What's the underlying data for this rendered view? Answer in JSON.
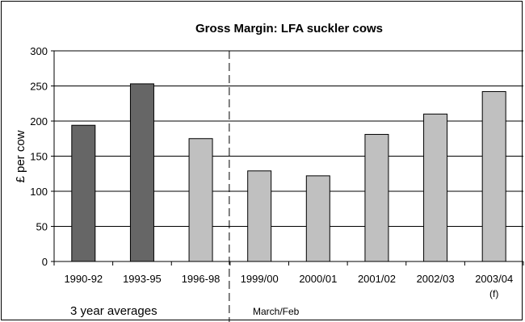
{
  "chart_data": {
    "type": "bar",
    "title": "Gross Margin: LFA suckler cows",
    "ylabel": "£ per cow",
    "xlabel": "",
    "ylim": [
      0,
      300
    ],
    "yticks": [
      0,
      50,
      100,
      150,
      200,
      250,
      300
    ],
    "grid": true,
    "categories": [
      "1990-92",
      "1993-95",
      "1996-98",
      "1999/00",
      "2000/01",
      "2001/02",
      "2002/03",
      "2003/04"
    ],
    "category_sublabels": [
      "",
      "",
      "",
      "",
      "",
      "",
      "",
      "(f)"
    ],
    "values": [
      194,
      253,
      175,
      129,
      122,
      181,
      210,
      242
    ],
    "bar_groups": [
      "dark",
      "dark",
      "light",
      "light",
      "light",
      "light",
      "light",
      "light"
    ],
    "colors": {
      "dark": "#666666",
      "light": "#c0c0c0",
      "grid": "#000000"
    },
    "annotations": {
      "left": "3 year averages",
      "right": "March/Feb"
    }
  }
}
